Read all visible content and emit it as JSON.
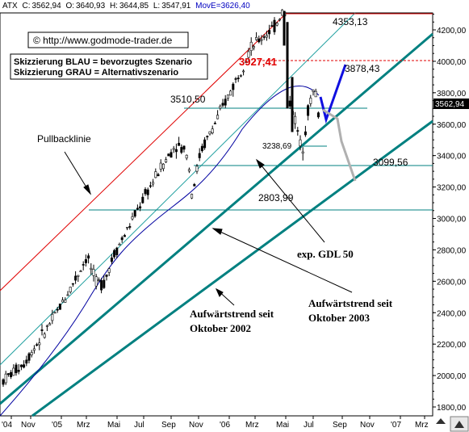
{
  "header": {
    "symbol": "ATX",
    "close_label": "C:",
    "close": "3562,94",
    "open_label": "O:",
    "open": "3640,93",
    "high_label": "H:",
    "high": "3644,85",
    "low_label": "L:",
    "low": "3547,91",
    "ma_label": "MovE=",
    "ma": "3626,40"
  },
  "copyright": "© http://www.godmode-trader.de",
  "legend": {
    "line1": "Skizzierung BLAU = bevorzugtes Szenario",
    "line2": "Skizzierung GRAU = Alternativszenario"
  },
  "labels": {
    "level_4353": "4353,13",
    "level_3927": "3927,41",
    "level_3878": "3878,43",
    "level_3510": "3510,50",
    "level_3238": "3238,69",
    "level_3099": "3099,56",
    "level_2803": "2803,99",
    "last_price": "3562,94",
    "pullback": "Pullbacklinie",
    "gdl": "exp. GDL 50",
    "trend2002_line1": "Aufwärtstrend seit",
    "trend2002_line2": "Oktober 2002",
    "trend2003_line1": "Aufwärtstrend seit",
    "trend2003_line2": "Oktober 2003"
  },
  "colors": {
    "candles": "#000000",
    "resistance": "#e00000",
    "support": "#008080",
    "trend": "#008080",
    "channel_upper": "#e00000",
    "channel_mid": "#20a0a0",
    "ma": "#0000a0",
    "blue_scenario": "#1010e0",
    "grey_scenario": "#b0b0b0"
  },
  "chart_data": {
    "type": "candlestick",
    "title": "",
    "xlabel": "",
    "ylabel": "",
    "ylim": [
      1750,
      4350
    ],
    "x_ticks": [
      "'04",
      "Nov",
      "'05",
      "Mrz",
      "Mai",
      "Jul",
      "Sep",
      "Nov",
      "'06",
      "Mrz",
      "Mai",
      "Jul",
      "Sep",
      "Nov",
      "'07",
      "Mrz"
    ],
    "y_ticks": [
      "1800,00",
      "2000,00",
      "2200,00",
      "2400,00",
      "2600,00",
      "2800,00",
      "3000,00",
      "3200,00",
      "3400,00",
      "3600,00",
      "3800,00",
      "4000,00",
      "4200,00"
    ],
    "horizontal_levels": [
      4353.13,
      3927.41,
      3510.5,
      3238.69,
      3099.56,
      2803.99
    ],
    "close_path": [
      {
        "x": "2004-09",
        "y": 1970
      },
      {
        "x": "2004-10",
        "y": 2050
      },
      {
        "x": "2004-11",
        "y": 2180
      },
      {
        "x": "2004-12",
        "y": 2300
      },
      {
        "x": "2005-01",
        "y": 2470
      },
      {
        "x": "2005-02",
        "y": 2650
      },
      {
        "x": "2005-03",
        "y": 2760
      },
      {
        "x": "2005-04",
        "y": 2600
      },
      {
        "x": "2005-05",
        "y": 2720
      },
      {
        "x": "2005-06",
        "y": 2930
      },
      {
        "x": "2005-07",
        "y": 3100
      },
      {
        "x": "2005-08",
        "y": 3300
      },
      {
        "x": "2005-09",
        "y": 3500
      },
      {
        "x": "2005-10",
        "y": 3200
      },
      {
        "x": "2005-11",
        "y": 3430
      },
      {
        "x": "2005-12",
        "y": 3580
      },
      {
        "x": "2006-01",
        "y": 3800
      },
      {
        "x": "2006-02",
        "y": 3950
      },
      {
        "x": "2006-03",
        "y": 4100
      },
      {
        "x": "2006-04",
        "y": 4200
      },
      {
        "x": "2006-05",
        "y": 4320
      },
      {
        "x": "2006-05",
        "y": 3700
      },
      {
        "x": "2006-06",
        "y": 3400
      },
      {
        "x": "2006-07",
        "y": 3840
      },
      {
        "x": "2006-07",
        "y": 3563
      }
    ],
    "blue_scenario": [
      {
        "x": "2006-07",
        "y": 3563
      },
      {
        "x": "2006-08",
        "y": 3440
      },
      {
        "x": "2006-08",
        "y": 3880
      }
    ],
    "grey_scenario": [
      {
        "x": "2006-07",
        "y": 3510
      },
      {
        "x": "2006-08",
        "y": 3230
      },
      {
        "x": "2006-08",
        "y": 3000
      }
    ]
  }
}
